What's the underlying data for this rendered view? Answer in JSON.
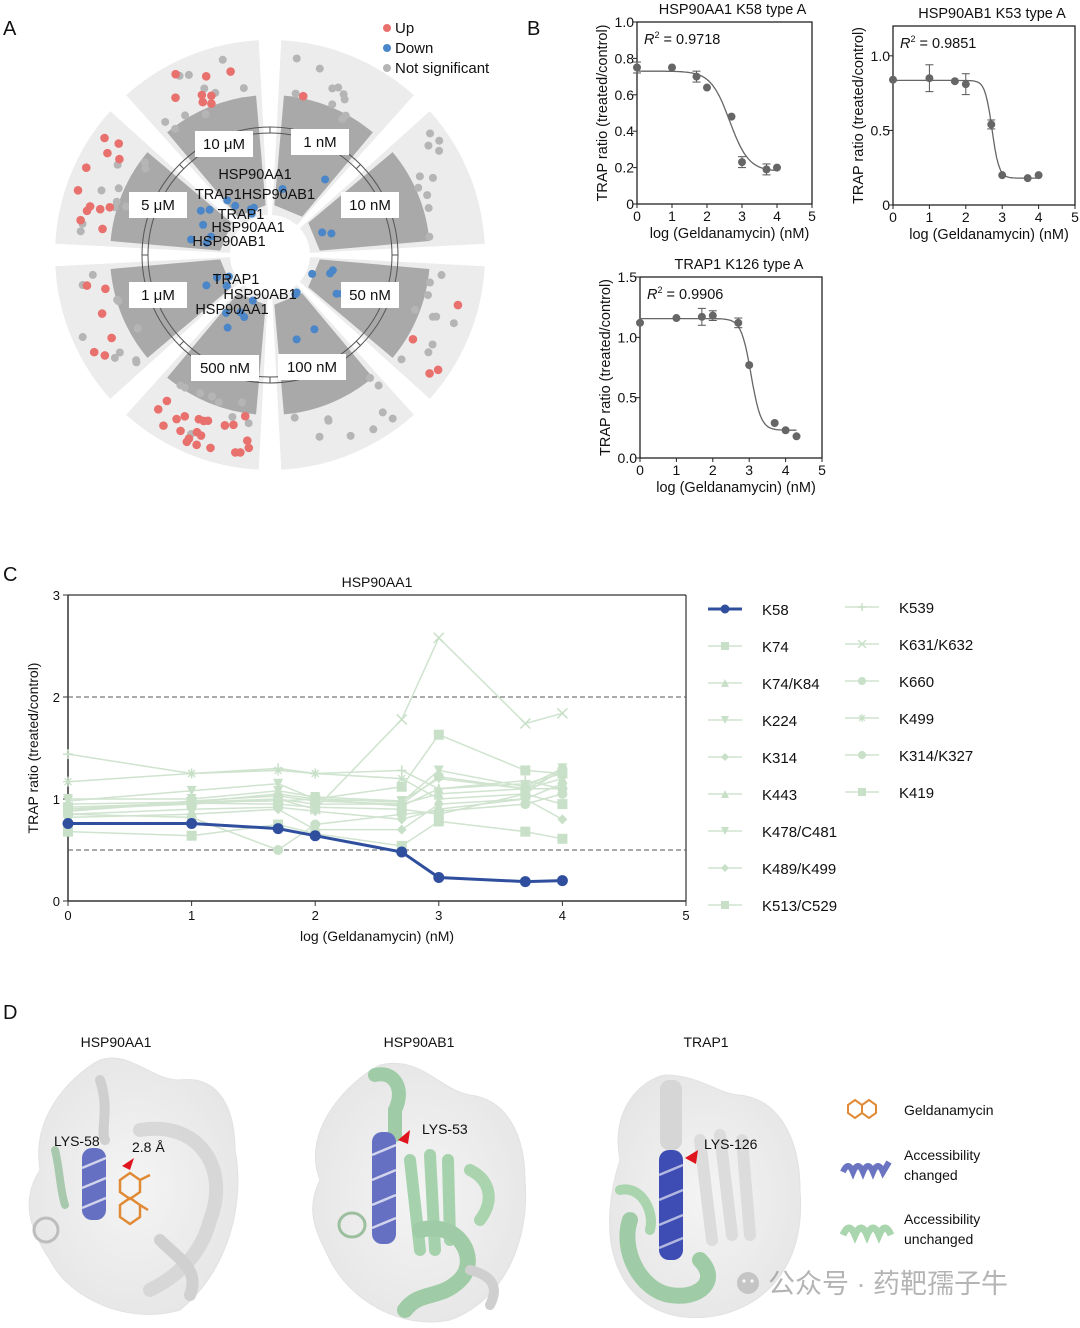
{
  "panels": {
    "a": "A",
    "b": "B",
    "c": "C",
    "d": "D"
  },
  "panelA": {
    "legend": [
      {
        "label": "Up",
        "color": "#e8706d"
      },
      {
        "label": "Down",
        "color": "#4a86c8"
      },
      {
        "label": "Not significant",
        "color": "#b5b5b5"
      }
    ],
    "sectors": [
      "1 nM",
      "10 nM",
      "50 nM",
      "100 nM",
      "500 nM",
      "1 μM",
      "5 μM",
      "10 μM"
    ],
    "protein_labels": {
      "s10uM": [
        "HSP90AA1",
        "TRAP1HSP90AB1"
      ],
      "s5uM": [
        "TRAP1",
        "HSP90AA1",
        "HSP90AB1"
      ],
      "s1uM": [
        "TRAP1",
        "HSP90AB1",
        "HSP90AA1"
      ]
    }
  },
  "chart_data": [
    {
      "type": "scatter",
      "id": "B1",
      "title": "HSP90AA1 K58 type A",
      "annotation": "= 0.9718",
      "annotation_r": "R",
      "xlabel": "log (Geldanamycin) (nM)",
      "ylabel": "TRAP ratio (treated/control)",
      "xlim": [
        0,
        5
      ],
      "ylim": [
        0,
        1.0
      ],
      "xticks": [
        "0",
        "1",
        "2",
        "3",
        "4",
        "5"
      ],
      "yticks": [
        "0",
        "0.2",
        "0.4",
        "0.6",
        "0.8",
        "1.0"
      ],
      "ytick_values": [
        0,
        0.2,
        0.4,
        0.6,
        0.8,
        1.0
      ],
      "x": [
        0,
        1,
        1.7,
        2,
        2.7,
        3,
        3.7,
        4
      ],
      "y": [
        0.75,
        0.75,
        0.7,
        0.64,
        0.48,
        0.23,
        0.19,
        0.2
      ],
      "err": [
        0.03,
        0,
        0.03,
        0,
        0,
        0.03,
        0.03,
        0
      ],
      "fit": {
        "top": 0.73,
        "bottom": 0.18,
        "logEC50": 2.65,
        "hill": -1.6
      }
    },
    {
      "type": "scatter",
      "id": "B2",
      "title": "HSP90AB1 K53 type A",
      "annotation": "= 0.9851",
      "annotation_r": "R",
      "xlabel": "log (Geldanamycin) (nM)",
      "ylabel": "TRAP ratio (treated/control)",
      "xlim": [
        0,
        5
      ],
      "ylim": [
        0,
        1.2
      ],
      "xticks": [
        "0",
        "1",
        "2",
        "3",
        "4",
        "5"
      ],
      "yticks": [
        "0",
        "0.5",
        "1.0"
      ],
      "ytick_values": [
        0,
        0.5,
        1.0
      ],
      "x": [
        0,
        1,
        1.7,
        2,
        2.7,
        3,
        3.7,
        4
      ],
      "y": [
        0.84,
        0.85,
        0.83,
        0.81,
        0.54,
        0.2,
        0.18,
        0.2
      ],
      "err": [
        0,
        0.09,
        0,
        0.07,
        0.03,
        0,
        0,
        0
      ],
      "fit": {
        "top": 0.835,
        "bottom": 0.18,
        "logEC50": 2.72,
        "hill": -4.5
      }
    },
    {
      "type": "scatter",
      "id": "B3",
      "title": "TRAP1 K126 type A",
      "annotation": "= 0.9906",
      "annotation_r": "R",
      "xlabel": "log (Geldanamycin) (nM)",
      "ylabel": "TRAP ratio (treated/control)",
      "xlim": [
        0,
        5
      ],
      "ylim": [
        0,
        1.5
      ],
      "xticks": [
        "0",
        "1",
        "2",
        "3",
        "4",
        "5"
      ],
      "yticks": [
        "0.0",
        "0.5",
        "1.0",
        "1.5"
      ],
      "ytick_values": [
        0,
        0.5,
        1.0,
        1.5
      ],
      "x": [
        0,
        1,
        1.7,
        2,
        2.7,
        3,
        3.7,
        4,
        4.3
      ],
      "y": [
        1.12,
        1.16,
        1.17,
        1.18,
        1.12,
        0.77,
        0.29,
        0.23,
        0.18
      ],
      "err": [
        0,
        0,
        0.07,
        0.04,
        0.04,
        0,
        0,
        0,
        0
      ],
      "fit": {
        "top": 1.155,
        "bottom": 0.23,
        "logEC50": 3.05,
        "hill": -3.2
      }
    },
    {
      "type": "line",
      "id": "C",
      "title": "HSP90AA1",
      "xlabel": "log (Geldanamycin) (nM)",
      "ylabel": "TRAP ratio (treated/control)",
      "xlim": [
        0,
        5
      ],
      "ylim": [
        0,
        3
      ],
      "xticks": [
        "0",
        "1",
        "2",
        "3",
        "4",
        "5"
      ],
      "yticks": [
        "0",
        "1",
        "2",
        "3"
      ],
      "ytick_values": [
        0,
        1,
        2,
        3
      ],
      "reference_lines": [
        2,
        0.5
      ],
      "x": [
        0,
        1,
        1.7,
        2,
        2.7,
        3,
        3.7,
        4
      ],
      "highlight_color": "#2f4f9e",
      "faded_color": "#c8e0c8",
      "series": [
        {
          "name": "K58",
          "marker": "circle",
          "highlight": true,
          "values": [
            0.76,
            0.76,
            0.71,
            0.64,
            0.48,
            0.23,
            0.19,
            0.2
          ]
        },
        {
          "name": "K74",
          "marker": "square",
          "values": [
            0.68,
            0.64,
            0.75,
            0.66,
            0.54,
            0.78,
            0.68,
            0.61
          ]
        },
        {
          "name": "K74/K84",
          "marker": "triangle",
          "values": [
            0.9,
            0.95,
            1.0,
            0.95,
            0.95,
            1.05,
            1.1,
            1.2
          ]
        },
        {
          "name": "K224",
          "marker": "triangle-down",
          "values": [
            0.98,
            1.08,
            1.15,
            1.0,
            0.97,
            1.28,
            1.12,
            1.3
          ]
        },
        {
          "name": "K314",
          "marker": "diamond",
          "values": [
            0.85,
            0.9,
            0.92,
            0.88,
            0.8,
            0.9,
            1.0,
            0.8
          ]
        },
        {
          "name": "K443",
          "marker": "triangle",
          "values": [
            0.95,
            0.97,
            1.05,
            1.0,
            0.93,
            1.1,
            1.15,
            1.25
          ]
        },
        {
          "name": "K478/C481",
          "marker": "triangle-down",
          "values": [
            1.0,
            1.0,
            1.08,
            1.02,
            0.98,
            1.2,
            1.1,
            1.27
          ]
        },
        {
          "name": "K489/K499",
          "marker": "diamond",
          "values": [
            0.82,
            0.85,
            0.9,
            0.7,
            0.7,
            0.95,
            1.0,
            1.15
          ]
        },
        {
          "name": "K513/C529",
          "marker": "square",
          "values": [
            0.92,
            0.96,
            0.95,
            0.92,
            0.9,
            0.85,
            1.05,
            0.95
          ]
        },
        {
          "name": "K539",
          "marker": "plus",
          "values": [
            1.44,
            1.25,
            1.3,
            1.25,
            1.28,
            1.1,
            1.18,
            1.1
          ]
        },
        {
          "name": "K631/K632",
          "marker": "x",
          "values": [
            0.88,
            0.97,
            1.0,
            0.9,
            1.78,
            2.58,
            1.74,
            1.84
          ]
        },
        {
          "name": "K660",
          "marker": "circle",
          "values": [
            0.88,
            0.98,
            1.03,
            0.98,
            0.95,
            1.22,
            1.1,
            1.1
          ]
        },
        {
          "name": "K499",
          "marker": "star",
          "values": [
            1.17,
            1.25,
            1.28,
            1.25,
            1.2,
            1.0,
            1.05,
            1.3
          ]
        },
        {
          "name": "K314/K327",
          "marker": "circle",
          "values": [
            0.85,
            0.82,
            0.5,
            0.75,
            0.85,
            0.88,
            0.95,
            1.05
          ]
        },
        {
          "name": "K419",
          "marker": "square",
          "values": [
            0.9,
            0.97,
            0.98,
            1.0,
            1.12,
            1.63,
            1.28,
            1.25
          ]
        }
      ]
    }
  ],
  "panelD": {
    "structures": [
      {
        "title": "HSP90AA1",
        "residue": "LYS-58",
        "distance": "2.8 Å"
      },
      {
        "title": "HSP90AB1",
        "residue": "LYS-53"
      },
      {
        "title": "TRAP1",
        "residue": "LYS-126"
      }
    ],
    "legend": [
      {
        "label": "Geldanamycin"
      },
      {
        "label": "Accessibility changed",
        "line1": "Accessibility",
        "line2": "changed",
        "color": "#6b74c0"
      },
      {
        "label": "Accessibility unchanged",
        "line1": "Accessibility",
        "line2": "unchanged",
        "color": "#a9d6ae"
      }
    ]
  },
  "watermark": "公众号 · 药靶孺子牛"
}
